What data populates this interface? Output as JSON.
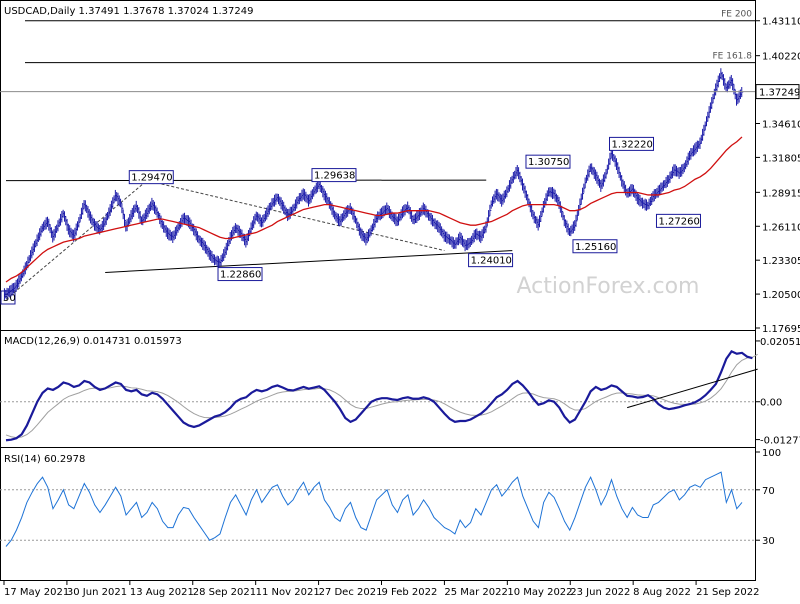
{
  "chart_data": {
    "type": "line",
    "symbol_header": "USDCAD,Daily  1.37491 1.37678 1.37024 1.37249",
    "watermark": "ActionForex.com",
    "x_ticks": [
      "17 May 2021",
      "30 Jun 2021",
      "13 Aug 2021",
      "28 Sep 2021",
      "11 Nov 2021",
      "27 Dec 2021",
      "9 Feb 2022",
      "25 Mar 2022",
      "10 May 2022",
      "23 Jun 2022",
      "8 Aug 2022",
      "21 Sep 2022"
    ],
    "price_panel": {
      "y_ticks": [
        "1.43110",
        "1.40220",
        "1.34610",
        "1.31805",
        "1.28915",
        "1.26110",
        "1.23305",
        "1.20500",
        "1.17695"
      ],
      "ylim": [
        1.17695,
        1.4466
      ],
      "last_price": 1.37249,
      "last_price_label": "1.37249",
      "left_partial_label": "50",
      "fe_levels": [
        {
          "label": "FE 200",
          "value": 1.4311
        },
        {
          "label": "FE 161.8",
          "value": 1.3965
        }
      ],
      "trendlines": [
        {
          "from": [
            0,
            1.2989
          ],
          "to": [
            92,
            1.2993
          ]
        },
        {
          "from": [
            19,
            1.2229
          ],
          "to": [
            97,
            1.241
          ]
        },
        {
          "from": [
            0,
            1.2006
          ],
          "to": [
            27,
            1.2989
          ]
        },
        {
          "from": [
            27,
            1.2989
          ],
          "to": [
            84,
            1.241
          ]
        }
      ],
      "annotations": [
        {
          "label": "1.29470",
          "x": 24,
          "value": 1.2947,
          "pos": "above"
        },
        {
          "label": "1.29638",
          "x": 59,
          "value": 1.2964,
          "pos": "above"
        },
        {
          "label": "1.30750",
          "x": 100,
          "value": 1.3075,
          "pos": "above"
        },
        {
          "label": "1.32220",
          "x": 116,
          "value": 1.3222,
          "pos": "above"
        },
        {
          "label": "1.22860",
          "x": 41,
          "value": 1.2286,
          "pos": "below"
        },
        {
          "label": "1.24010",
          "x": 89,
          "value": 1.2401,
          "pos": "below"
        },
        {
          "label": "1.25160",
          "x": 109,
          "value": 1.2516,
          "pos": "below"
        },
        {
          "label": "1.27260",
          "x": 125,
          "value": 1.2726,
          "pos": "below"
        }
      ],
      "close": [
        1.205,
        1.208,
        1.212,
        1.22,
        1.229,
        1.24,
        1.25,
        1.26,
        1.265,
        1.252,
        1.262,
        1.272,
        1.258,
        1.253,
        1.265,
        1.28,
        1.27,
        1.262,
        1.258,
        1.265,
        1.275,
        1.287,
        1.28,
        1.26,
        1.27,
        1.278,
        1.265,
        1.272,
        1.28,
        1.272,
        1.262,
        1.255,
        1.252,
        1.26,
        1.268,
        1.265,
        1.258,
        1.25,
        1.245,
        1.238,
        1.233,
        1.231,
        1.24,
        1.252,
        1.26,
        1.255,
        1.248,
        1.26,
        1.27,
        1.264,
        1.272,
        1.28,
        1.285,
        1.278,
        1.27,
        1.275,
        1.283,
        1.288,
        1.282,
        1.29,
        1.296,
        1.287,
        1.28,
        1.27,
        1.265,
        1.272,
        1.276,
        1.266,
        1.255,
        1.25,
        1.258,
        1.268,
        1.272,
        1.276,
        1.269,
        1.265,
        1.273,
        1.277,
        1.266,
        1.27,
        1.276,
        1.27,
        1.264,
        1.26,
        1.253,
        1.25,
        1.246,
        1.252,
        1.245,
        1.248,
        1.255,
        1.252,
        1.261,
        1.28,
        1.288,
        1.282,
        1.29,
        1.3,
        1.3075,
        1.295,
        1.283,
        1.27,
        1.262,
        1.278,
        1.29,
        1.288,
        1.28,
        1.265,
        1.256,
        1.262,
        1.28,
        1.298,
        1.31,
        1.303,
        1.294,
        1.305,
        1.322,
        1.312,
        1.298,
        1.288,
        1.292,
        1.284,
        1.28,
        1.278,
        1.286,
        1.29,
        1.295,
        1.3,
        1.308,
        1.305,
        1.31,
        1.32,
        1.325,
        1.33,
        1.345,
        1.36,
        1.375,
        1.388,
        1.375,
        1.382,
        1.365,
        1.3725
      ],
      "ma": [
        1.215,
        1.218,
        1.22,
        1.223,
        1.227,
        1.231,
        1.235,
        1.239,
        1.242,
        1.244,
        1.246,
        1.248,
        1.249,
        1.25,
        1.251,
        1.253,
        1.254,
        1.255,
        1.256,
        1.257,
        1.258,
        1.259,
        1.26,
        1.261,
        1.262,
        1.263,
        1.264,
        1.265,
        1.266,
        1.267,
        1.267,
        1.266,
        1.265,
        1.264,
        1.263,
        1.262,
        1.261,
        1.26,
        1.258,
        1.256,
        1.254,
        1.252,
        1.251,
        1.251,
        1.252,
        1.253,
        1.254,
        1.255,
        1.256,
        1.258,
        1.26,
        1.262,
        1.265,
        1.267,
        1.269,
        1.271,
        1.273,
        1.275,
        1.276,
        1.277,
        1.278,
        1.279,
        1.279,
        1.278,
        1.277,
        1.276,
        1.275,
        1.274,
        1.273,
        1.272,
        1.271,
        1.27,
        1.27,
        1.271,
        1.272,
        1.272,
        1.273,
        1.274,
        1.274,
        1.274,
        1.274,
        1.274,
        1.273,
        1.272,
        1.27,
        1.268,
        1.266,
        1.264,
        1.263,
        1.262,
        1.262,
        1.263,
        1.264,
        1.265,
        1.267,
        1.269,
        1.271,
        1.274,
        1.276,
        1.278,
        1.279,
        1.279,
        1.279,
        1.279,
        1.279,
        1.279,
        1.278,
        1.276,
        1.274,
        1.274,
        1.275,
        1.277,
        1.28,
        1.282,
        1.284,
        1.286,
        1.288,
        1.289,
        1.289,
        1.289,
        1.289,
        1.289,
        1.288,
        1.287,
        1.287,
        1.287,
        1.288,
        1.289,
        1.291,
        1.292,
        1.294,
        1.297,
        1.3,
        1.302,
        1.305,
        1.309,
        1.314,
        1.319,
        1.324,
        1.328,
        1.331,
        1.335
      ]
    },
    "macd_panel": {
      "label": "MACD(12,26,9) 0.014731 0.015973",
      "y_ticks": [
        "0.020518",
        "0.00",
        "-0.012771"
      ],
      "ylim": [
        -0.0146,
        0.0232
      ],
      "macd": [
        -0.013,
        -0.0128,
        -0.0123,
        -0.011,
        -0.008,
        -0.004,
        0.0,
        0.003,
        0.0045,
        0.004,
        0.005,
        0.0065,
        0.006,
        0.005,
        0.0055,
        0.007,
        0.0065,
        0.005,
        0.004,
        0.0045,
        0.0055,
        0.0065,
        0.006,
        0.004,
        0.0035,
        0.004,
        0.0025,
        0.002,
        0.003,
        0.0025,
        0.001,
        -0.001,
        -0.003,
        -0.005,
        -0.007,
        -0.008,
        -0.0085,
        -0.008,
        -0.007,
        -0.006,
        -0.005,
        -0.0045,
        -0.0035,
        -0.002,
        0.0,
        0.001,
        0.0015,
        0.003,
        0.004,
        0.0035,
        0.004,
        0.005,
        0.0055,
        0.0048,
        0.004,
        0.0038,
        0.0044,
        0.005,
        0.0044,
        0.0048,
        0.0052,
        0.004,
        0.002,
        0.0,
        -0.0025,
        -0.0055,
        -0.0068,
        -0.006,
        -0.004,
        -0.002,
        0.0,
        0.0008,
        0.0012,
        0.0012,
        0.0008,
        0.0006,
        0.0012,
        0.0015,
        0.001,
        0.001,
        0.0015,
        0.001,
        0.0,
        -0.002,
        -0.004,
        -0.0058,
        -0.0068,
        -0.0065,
        -0.0065,
        -0.006,
        -0.005,
        -0.004,
        -0.0025,
        -0.0005,
        0.0015,
        0.0025,
        0.004,
        0.006,
        0.007,
        0.0055,
        0.0035,
        0.001,
        -0.001,
        -0.0005,
        0.0005,
        0.0,
        -0.002,
        -0.005,
        -0.007,
        -0.006,
        -0.003,
        0.0,
        0.0035,
        0.005,
        0.004,
        0.0045,
        0.0055,
        0.005,
        0.0035,
        0.002,
        0.0018,
        0.0014,
        0.0016,
        0.0022,
        0.001,
        -0.0008,
        -0.002,
        -0.0025,
        -0.0022,
        -0.0018,
        -0.0012,
        -0.0008,
        -0.0002,
        0.0008,
        0.0022,
        0.004,
        0.006,
        0.01,
        0.0145,
        0.017,
        0.0162,
        0.0165,
        0.0152,
        0.0147
      ],
      "signal": [
        -0.0112,
        -0.0118,
        -0.0121,
        -0.0119,
        -0.0111,
        -0.0097,
        -0.0078,
        -0.0057,
        -0.0036,
        -0.0021,
        -0.0007,
        0.0008,
        0.0018,
        0.0024,
        0.003,
        0.0038,
        0.0044,
        0.0046,
        0.0045,
        0.0045,
        0.0047,
        0.0051,
        0.0053,
        0.0051,
        0.0047,
        0.0046,
        0.0042,
        0.0037,
        0.0036,
        0.0034,
        0.0029,
        0.0021,
        0.001,
        -0.0002,
        -0.0016,
        -0.0029,
        -0.004,
        -0.0048,
        -0.0053,
        -0.0054,
        -0.0053,
        -0.0051,
        -0.0048,
        -0.0042,
        -0.0034,
        -0.0025,
        -0.0017,
        -0.0008,
        0.0002,
        0.0009,
        0.0015,
        0.0022,
        0.0029,
        0.0033,
        0.0035,
        0.0036,
        0.0038,
        0.0041,
        0.0042,
        0.0043,
        0.0045,
        0.0044,
        0.004,
        0.0032,
        0.0021,
        0.0006,
        -0.0009,
        -0.0019,
        -0.0023,
        -0.0023,
        -0.0018,
        -0.0013,
        -0.0008,
        -0.0004,
        -0.0001,
        0.0,
        0.0003,
        0.0005,
        0.0006,
        0.0007,
        0.0008,
        0.0008,
        0.0006,
        0.0001,
        -0.0007,
        -0.0017,
        -0.0027,
        -0.0035,
        -0.0041,
        -0.0045,
        -0.0046,
        -0.0045,
        -0.0041,
        -0.0034,
        -0.0024,
        -0.0014,
        -0.0003,
        0.001,
        0.0022,
        0.0029,
        0.003,
        0.0026,
        0.0019,
        0.0014,
        0.0012,
        0.001,
        0.0004,
        -0.0007,
        -0.002,
        -0.0028,
        -0.0028,
        -0.0023,
        -0.0011,
        0.0001,
        0.0009,
        0.0016,
        0.0024,
        0.0029,
        0.003,
        0.0028,
        0.0026,
        0.0023,
        0.0022,
        0.0022,
        0.002,
        0.0014,
        0.0007,
        0.0,
        -0.0005,
        -0.0008,
        -0.0009,
        -0.0009,
        -0.0008,
        -0.0004,
        0.0002,
        0.0012,
        0.0026,
        0.0044,
        0.007,
        0.01,
        0.0125,
        0.014,
        0.0148,
        0.015,
        0.016
      ],
      "trendline": {
        "from": [
          119,
          -0.002
        ],
        "to": [
          144,
          0.011
        ]
      }
    },
    "rsi_panel": {
      "label": "RSI(14) 60.2978",
      "y_ticks": [
        "100",
        "70",
        "30"
      ],
      "ylim": [
        0,
        100
      ],
      "levels": [
        70,
        30
      ],
      "values": [
        25,
        30,
        38,
        48,
        60,
        68,
        75,
        80,
        72,
        55,
        62,
        70,
        58,
        55,
        65,
        75,
        68,
        58,
        52,
        58,
        65,
        72,
        65,
        50,
        55,
        60,
        48,
        52,
        60,
        55,
        45,
        40,
        40,
        50,
        56,
        55,
        48,
        42,
        36,
        30,
        32,
        35,
        48,
        60,
        66,
        58,
        50,
        62,
        70,
        60,
        66,
        72,
        74,
        65,
        58,
        62,
        70,
        76,
        66,
        72,
        76,
        62,
        56,
        48,
        45,
        55,
        60,
        48,
        40,
        38,
        50,
        62,
        66,
        70,
        58,
        52,
        62,
        66,
        50,
        55,
        62,
        56,
        48,
        44,
        40,
        38,
        35,
        46,
        40,
        44,
        55,
        50,
        60,
        70,
        74,
        65,
        70,
        76,
        80,
        65,
        55,
        45,
        40,
        60,
        68,
        64,
        55,
        45,
        38,
        48,
        60,
        72,
        80,
        70,
        58,
        66,
        78,
        65,
        55,
        48,
        56,
        50,
        48,
        48,
        58,
        60,
        64,
        68,
        70,
        62,
        66,
        72,
        74,
        72,
        78,
        80,
        82,
        84,
        60,
        70,
        55,
        60
      ]
    }
  },
  "colors": {
    "price": "#1a1aa8",
    "ma": "#d01010",
    "macd": "#1a1a9a",
    "signal": "#a0a0a0",
    "rsi": "#1e73d6",
    "lines": "#000000",
    "grid_dash": "#9a9a9a",
    "label_box_border": "#1a1a9a"
  }
}
